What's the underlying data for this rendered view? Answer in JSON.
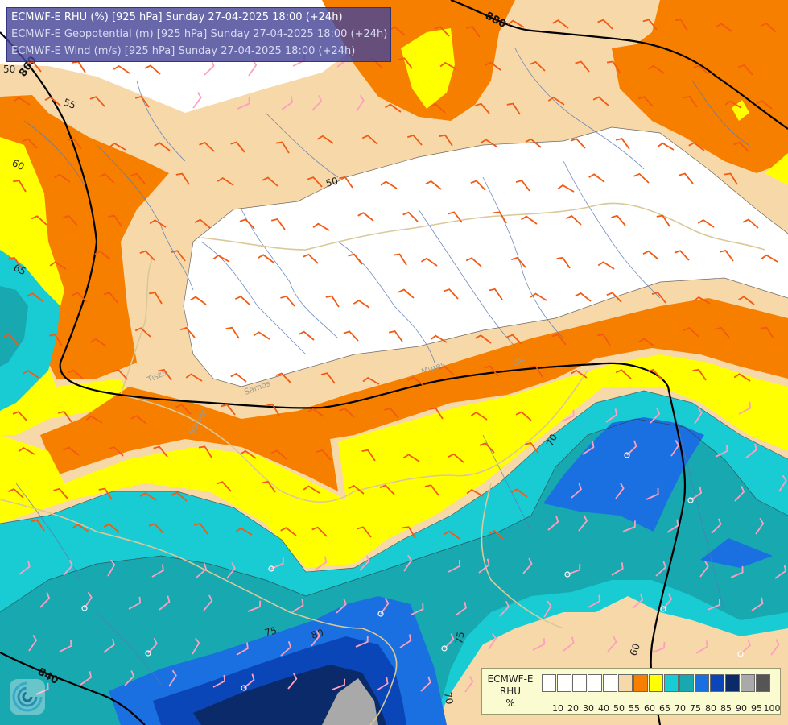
{
  "header": {
    "line1": "ECMWF-E RHU (%) [925 hPa] Sunday 27-04-2025 18:00 (+24h)",
    "line2": "ECMWF-E Geopotential (m) [925 hPa] Sunday 27-04-2025 18:00 (+24h)",
    "line3": "ECMWF-E Wind (m/s) [925 hPa] Sunday 27-04-2025 18:00 (+24h)"
  },
  "legend": {
    "title_line1": "ECMWF-E",
    "title_line2": "RHU",
    "title_line3": "%",
    "bins": [
      {
        "label": "10",
        "color": "#ffffff"
      },
      {
        "label": "20",
        "color": "#ffffff"
      },
      {
        "label": "30",
        "color": "#ffffff"
      },
      {
        "label": "40",
        "color": "#ffffff"
      },
      {
        "label": "50",
        "color": "#ffffff"
      },
      {
        "label": "55",
        "color": "#f7d8a8"
      },
      {
        "label": "60",
        "color": "#f77f00"
      },
      {
        "label": "65",
        "color": "#ffff00"
      },
      {
        "label": "70",
        "color": "#19cbd2"
      },
      {
        "label": "75",
        "color": "#17a8b0"
      },
      {
        "label": "80",
        "color": "#1a70e0"
      },
      {
        "label": "85",
        "color": "#0a46b8"
      },
      {
        "label": "90",
        "color": "#0a2a6a"
      },
      {
        "label": "95",
        "color": "#a9a9a9"
      },
      {
        "label": "100",
        "color": "#555555"
      }
    ]
  },
  "contour_labels": {
    "geopotential": [
      "880",
      "860",
      "840"
    ],
    "rhu": [
      "50",
      "55",
      "60",
      "65",
      "50",
      "75",
      "80",
      "70",
      "75",
      "70",
      "60"
    ]
  },
  "place_labels": [
    "Tisza",
    "Samos",
    "Someș",
    "Mureș",
    "Olt"
  ],
  "colors": {
    "rhu_50_below": "#ffffff",
    "rhu_55": "#f7d8a8",
    "rhu_60": "#f77f00",
    "rhu_65": "#ffff00",
    "rhu_70": "#19cbd2",
    "rhu_75": "#17a8b0",
    "rhu_80": "#1a70e0",
    "rhu_85": "#0a46b8",
    "rhu_90": "#0a2a6a",
    "rhu_95": "#a9a9a9",
    "wind_barb_strong": "#f25a14",
    "wind_barb_weak": "#ff9fc0",
    "rivers": "#5a78b4",
    "borders": "#d9c89a",
    "geopotential_contour": "#000000"
  },
  "logo_icon": "ecmwf-swirl-icon"
}
